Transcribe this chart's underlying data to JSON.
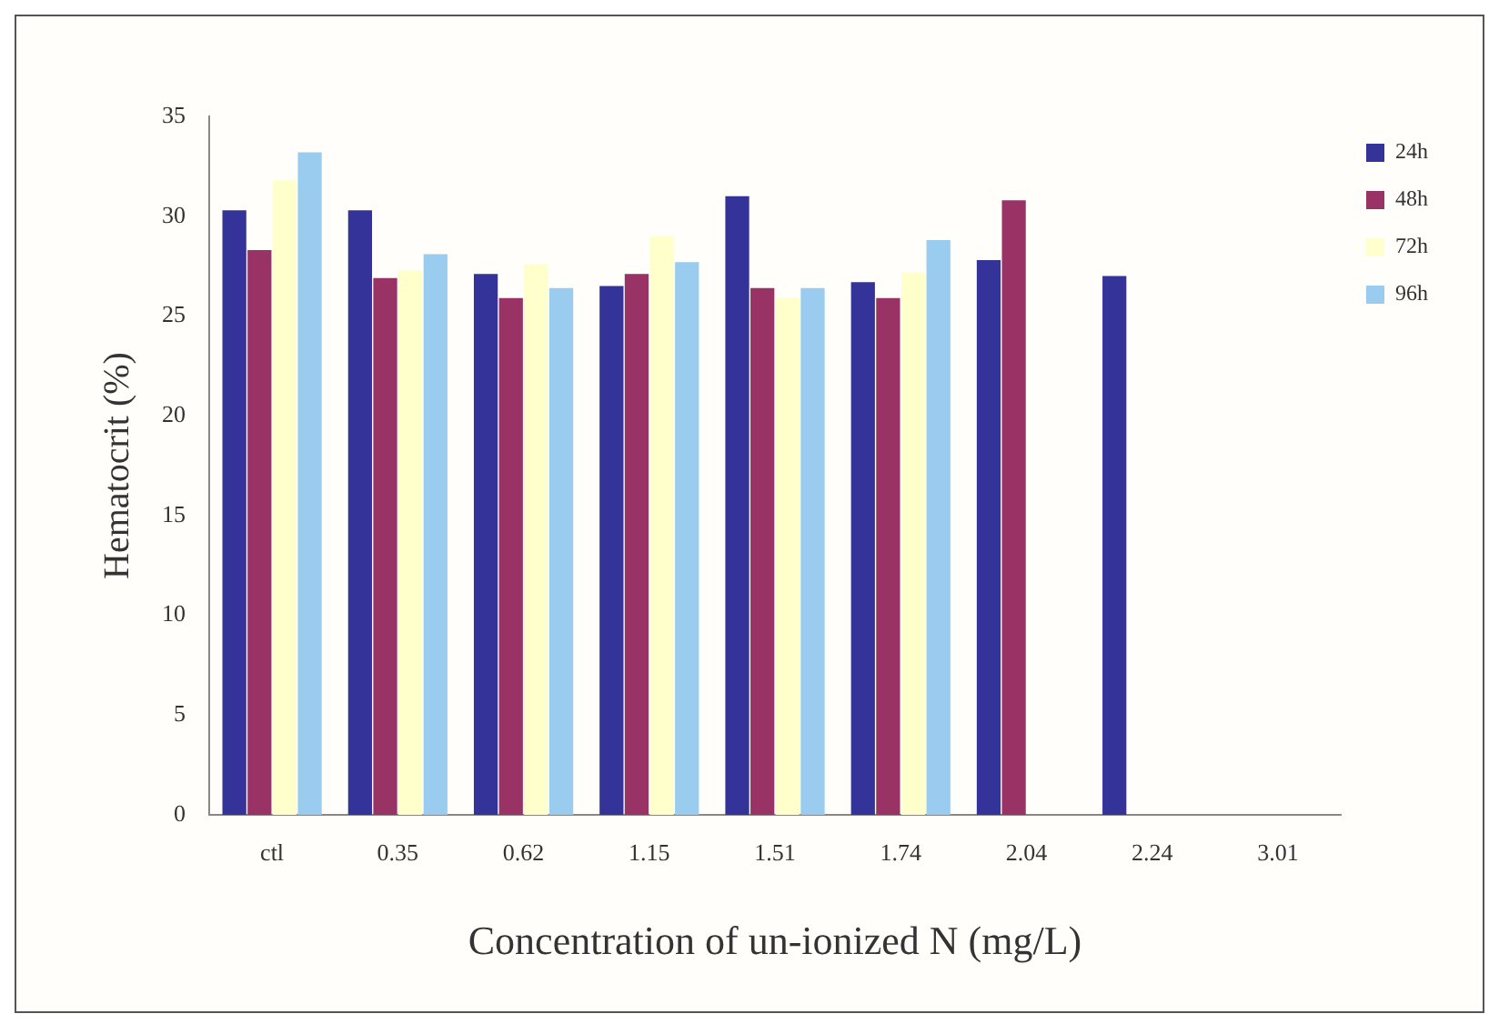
{
  "chart_data": {
    "type": "bar",
    "xlabel": "Concentration of un-ionized N (mg/L)",
    "ylabel": "Hematocrit (%)",
    "categories": [
      "ctl",
      "0.35",
      "0.62",
      "1.15",
      "1.51",
      "1.74",
      "2.04",
      "2.24",
      "3.01"
    ],
    "series": [
      {
        "name": "24h",
        "color": "#333399",
        "values": [
          30.3,
          30.3,
          27.1,
          26.5,
          31.0,
          26.7,
          27.8,
          27.0,
          null
        ]
      },
      {
        "name": "48h",
        "color": "#993366",
        "values": [
          28.3,
          26.9,
          25.9,
          27.1,
          26.4,
          25.9,
          30.8,
          null,
          null
        ]
      },
      {
        "name": "72h",
        "color": "#ffffcc",
        "values": [
          31.8,
          27.3,
          27.6,
          29.0,
          25.9,
          27.2,
          null,
          null,
          null
        ]
      },
      {
        "name": "96h",
        "color": "#99ccee",
        "values": [
          33.2,
          28.1,
          26.4,
          27.7,
          26.4,
          28.8,
          null,
          null,
          null
        ]
      }
    ],
    "ylim": [
      0,
      35
    ],
    "yticks": [
      0,
      5,
      10,
      15,
      20,
      25,
      30,
      35
    ],
    "grid": false,
    "legend": "top right"
  }
}
